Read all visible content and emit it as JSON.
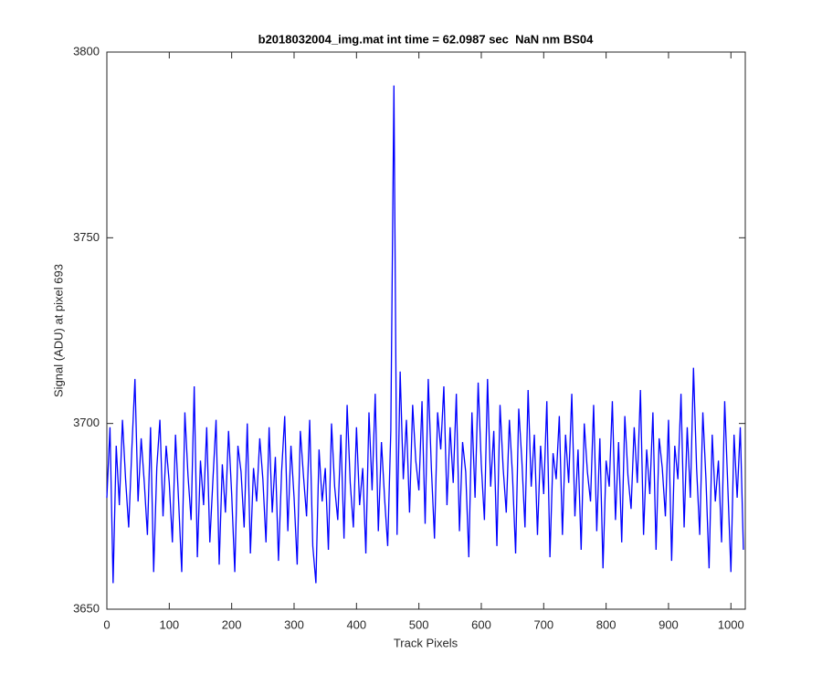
{
  "chart_data": {
    "type": "line",
    "title": "b2018032004_img.mat int time = 62.0987 sec  NaN nm BS04",
    "x_label": "Track Pixels",
    "y_label": "Signal (ADU) at pixel 693",
    "color": "#0000ff",
    "xlim": [
      0,
      1023
    ],
    "xticks": [
      0,
      100,
      200,
      300,
      400,
      500,
      600,
      700,
      800,
      900,
      1000
    ],
    "ylim": [
      3650,
      3800
    ],
    "yticks": [
      3650,
      3700,
      3750,
      3800
    ],
    "x": [
      0,
      5,
      10,
      15,
      20,
      25,
      30,
      35,
      40,
      45,
      50,
      55,
      60,
      65,
      70,
      75,
      80,
      85,
      90,
      95,
      100,
      105,
      110,
      115,
      120,
      125,
      130,
      135,
      140,
      145,
      150,
      155,
      160,
      165,
      170,
      175,
      180,
      185,
      190,
      195,
      200,
      205,
      210,
      215,
      220,
      225,
      230,
      235,
      240,
      245,
      250,
      255,
      260,
      265,
      270,
      275,
      280,
      285,
      290,
      295,
      300,
      305,
      310,
      315,
      320,
      325,
      330,
      335,
      340,
      345,
      350,
      355,
      360,
      365,
      370,
      375,
      380,
      385,
      390,
      395,
      400,
      405,
      410,
      415,
      420,
      425,
      430,
      435,
      440,
      445,
      450,
      455,
      460,
      465,
      470,
      475,
      480,
      485,
      490,
      495,
      500,
      505,
      510,
      515,
      520,
      525,
      530,
      535,
      540,
      545,
      550,
      555,
      560,
      565,
      570,
      575,
      580,
      585,
      590,
      595,
      600,
      605,
      610,
      615,
      620,
      625,
      630,
      635,
      640,
      645,
      650,
      655,
      660,
      665,
      670,
      675,
      680,
      685,
      690,
      695,
      700,
      705,
      710,
      715,
      720,
      725,
      730,
      735,
      740,
      745,
      750,
      755,
      760,
      765,
      770,
      775,
      780,
      785,
      790,
      795,
      800,
      805,
      810,
      815,
      820,
      825,
      830,
      835,
      840,
      845,
      850,
      855,
      860,
      865,
      870,
      875,
      880,
      885,
      890,
      895,
      900,
      905,
      910,
      915,
      920,
      925,
      930,
      935,
      940,
      945,
      950,
      955,
      960,
      965,
      970,
      975,
      980,
      985,
      990,
      995,
      1000,
      1005,
      1010,
      1015,
      1020
    ],
    "values": [
      3680,
      3699,
      3657,
      3694,
      3678,
      3701,
      3685,
      3672,
      3693,
      3712,
      3679,
      3696,
      3684,
      3670,
      3699,
      3660,
      3688,
      3701,
      3675,
      3694,
      3684,
      3668,
      3697,
      3679,
      3660,
      3703,
      3686,
      3674,
      3710,
      3664,
      3690,
      3678,
      3699,
      3668,
      3685,
      3701,
      3662,
      3689,
      3676,
      3698,
      3681,
      3660,
      3694,
      3687,
      3672,
      3700,
      3665,
      3688,
      3679,
      3696,
      3685,
      3668,
      3699,
      3676,
      3691,
      3663,
      3687,
      3702,
      3671,
      3694,
      3680,
      3662,
      3698,
      3686,
      3675,
      3701,
      3667,
      3657,
      3693,
      3679,
      3688,
      3666,
      3700,
      3683,
      3674,
      3697,
      3669,
      3705,
      3684,
      3672,
      3699,
      3678,
      3688,
      3665,
      3703,
      3682,
      3708,
      3671,
      3695,
      3680,
      3667,
      3698,
      3791,
      3670,
      3714,
      3685,
      3701,
      3676,
      3705,
      3690,
      3682,
      3706,
      3673,
      3712,
      3688,
      3669,
      3703,
      3693,
      3710,
      3678,
      3699,
      3684,
      3708,
      3671,
      3695,
      3687,
      3664,
      3703,
      3680,
      3711,
      3689,
      3674,
      3712,
      3683,
      3698,
      3667,
      3705,
      3688,
      3676,
      3701,
      3686,
      3665,
      3704,
      3690,
      3672,
      3709,
      3683,
      3697,
      3670,
      3694,
      3681,
      3706,
      3664,
      3692,
      3685,
      3702,
      3670,
      3697,
      3684,
      3708,
      3675,
      3693,
      3666,
      3700,
      3687,
      3679,
      3705,
      3671,
      3696,
      3661,
      3690,
      3683,
      3706,
      3674,
      3695,
      3668,
      3702,
      3686,
      3677,
      3699,
      3684,
      3709,
      3670,
      3693,
      3681,
      3703,
      3666,
      3696,
      3688,
      3675,
      3701,
      3663,
      3694,
      3685,
      3708,
      3672,
      3699,
      3680,
      3715,
      3688,
      3670,
      3703,
      3685,
      3661,
      3697,
      3679,
      3690,
      3668,
      3706,
      3683,
      3660,
      3697,
      3680,
      3699,
      3666
    ]
  }
}
